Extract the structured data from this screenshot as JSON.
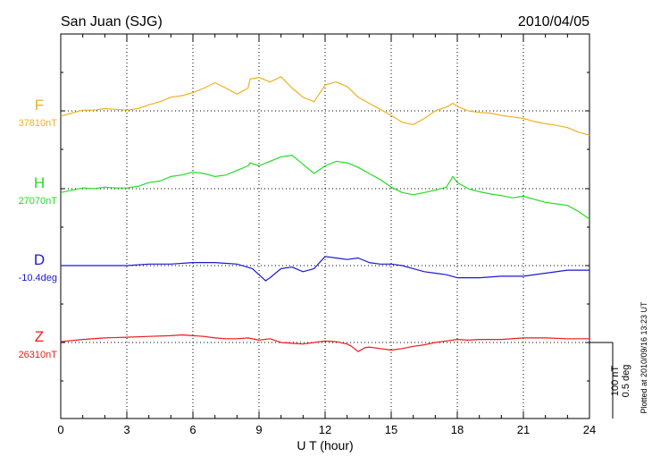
{
  "chart_data": {
    "type": "line",
    "station": "San Juan (SJG)",
    "date": "2010/04/05",
    "xlabel": "U T (hour)",
    "xlim": [
      0,
      24
    ],
    "xticks": [
      0,
      3,
      6,
      9,
      12,
      15,
      18,
      21,
      24
    ],
    "minor_xtick_step": 1,
    "grid": true,
    "scale_bar": {
      "line1": "100 nT",
      "line2": "0.5 deg"
    },
    "footer": "Plotted at 2010/09/16 13:23 UT",
    "series": [
      {
        "name": "F",
        "baseline_label": "37810nT",
        "color": "#f0b020",
        "offset_units": "nT",
        "baseline": 37810,
        "x": [
          0,
          0.5,
          1,
          1.5,
          2,
          2.5,
          3,
          3.5,
          4,
          4.5,
          5,
          5.5,
          6,
          6.5,
          7,
          7.5,
          8,
          8.5,
          8.6,
          9,
          9.5,
          10,
          10.5,
          11,
          11.5,
          12,
          12.5,
          13,
          13.5,
          14,
          14.5,
          15,
          15.5,
          16,
          16.5,
          17,
          17.5,
          17.8,
          18,
          18.5,
          19,
          19.5,
          20,
          20.5,
          21,
          21.5,
          22,
          22.5,
          23,
          23.5,
          24
        ],
        "values": [
          -7,
          -3,
          1,
          1,
          3,
          2,
          1,
          3,
          8,
          12,
          18,
          20,
          24,
          30,
          37,
          30,
          22,
          30,
          42,
          44,
          38,
          45,
          30,
          18,
          12,
          34,
          38,
          32,
          18,
          10,
          2,
          -6,
          -15,
          -18,
          -10,
          0,
          5,
          10,
          6,
          0,
          -2,
          -3,
          -6,
          -8,
          -10,
          -14,
          -17,
          -19,
          -22,
          -28,
          -32
        ]
      },
      {
        "name": "H",
        "baseline_label": "27070nT",
        "color": "#22dd22",
        "offset_units": "nT",
        "baseline": 27070,
        "x": [
          0,
          0.5,
          1,
          1.5,
          2,
          2.5,
          3,
          3.5,
          4,
          4.5,
          5,
          5.5,
          6,
          6.5,
          7,
          7.5,
          8,
          8.5,
          8.6,
          9,
          9.5,
          10,
          10.5,
          11,
          11.5,
          12,
          12.5,
          13,
          13.5,
          14,
          14.5,
          15,
          15.5,
          16,
          16.5,
          17,
          17.5,
          17.8,
          18,
          18.5,
          19,
          19.5,
          20,
          20.5,
          21,
          21.5,
          22,
          22.5,
          23,
          23.5,
          24
        ],
        "values": [
          -5,
          -2,
          1,
          0,
          2,
          1,
          1,
          3,
          8,
          10,
          16,
          18,
          22,
          20,
          16,
          18,
          24,
          30,
          34,
          30,
          36,
          42,
          44,
          32,
          20,
          30,
          36,
          34,
          28,
          20,
          12,
          2,
          -5,
          -8,
          -5,
          -2,
          2,
          16,
          8,
          0,
          -4,
          -7,
          -9,
          -12,
          -10,
          -14,
          -18,
          -20,
          -22,
          -30,
          -40
        ]
      },
      {
        "name": "D",
        "baseline_label": "-10.4deg",
        "color": "#1a1ad0",
        "offset_units": "deg",
        "baseline": -10.4,
        "x": [
          0,
          1,
          2,
          3,
          4,
          5,
          6,
          7,
          8,
          8.7,
          9,
          9.3,
          9.5,
          10,
          10.5,
          11,
          11.5,
          12,
          12.5,
          13,
          13.5,
          14,
          14.5,
          15,
          15.5,
          16,
          16.5,
          17,
          17.5,
          18,
          19,
          20,
          21,
          22,
          23,
          24
        ],
        "values": [
          0,
          0,
          0,
          0,
          0.01,
          0.01,
          0.02,
          0.02,
          0.01,
          -0.02,
          -0.06,
          -0.1,
          -0.08,
          -0.02,
          -0.01,
          -0.04,
          -0.02,
          0.06,
          0.05,
          0.04,
          0.05,
          0.02,
          0.01,
          0.01,
          0,
          -0.02,
          -0.04,
          -0.05,
          -0.06,
          -0.08,
          -0.08,
          -0.07,
          -0.07,
          -0.05,
          -0.03,
          -0.03
        ]
      },
      {
        "name": "Z",
        "baseline_label": "26310nT",
        "color": "#ee1a1a",
        "offset_units": "nT",
        "baseline": 26310,
        "x": [
          0,
          1,
          2,
          3,
          4,
          5,
          5.5,
          6,
          6.5,
          7,
          7.5,
          8,
          8.5,
          9,
          9.5,
          10,
          10.5,
          11,
          11.5,
          12,
          12.5,
          13,
          13.2,
          13.5,
          13.8,
          14,
          14.5,
          15,
          15.5,
          16,
          16.5,
          17,
          17.5,
          18,
          18.5,
          19,
          20,
          21,
          22,
          23,
          24
        ],
        "values": [
          1,
          4,
          6,
          7,
          8,
          9,
          10,
          9,
          8,
          6,
          5,
          5,
          6,
          3,
          5,
          0,
          -1,
          -2,
          0,
          2,
          1,
          -2,
          -5,
          -12,
          -7,
          -6,
          -8,
          -10,
          -8,
          -5,
          -3,
          0,
          2,
          4,
          3,
          4,
          4,
          6,
          6,
          5,
          5
        ]
      }
    ]
  }
}
